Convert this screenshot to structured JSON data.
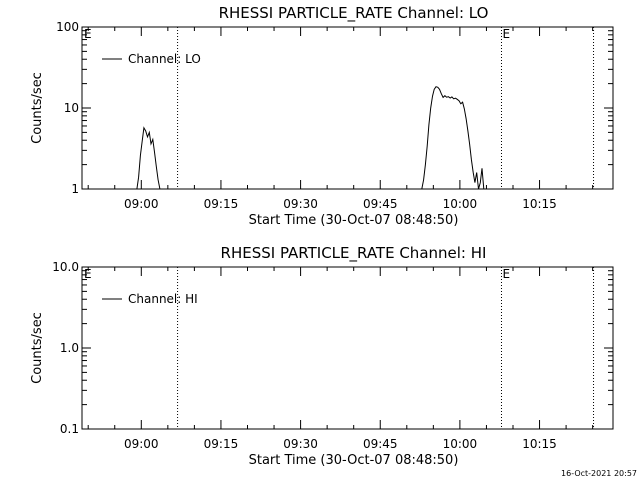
{
  "footer": {
    "timestamp": "16-Oct-2021 20:57"
  },
  "chart_data": [
    {
      "type": "line",
      "title": "RHESSI PARTICLE_RATE Channel: LO",
      "xlabel": "Start Time (30-Oct-07 08:48:50)",
      "ylabel": "Counts/sec",
      "y_scale": "log",
      "ylim": [
        1,
        100
      ],
      "xlim": [
        "08:48:50",
        "10:28:50"
      ],
      "x_tick_labels": [
        "09:00",
        "09:15",
        "09:30",
        "09:45",
        "10:00",
        "10:15"
      ],
      "y_tick_labels": [
        "1",
        "10",
        "100"
      ],
      "legend": {
        "position": "top-left",
        "label": "Channel: LO"
      },
      "markers": [
        {
          "time": "09:06:50",
          "label": ""
        },
        {
          "time": "10:07:50",
          "label": "E"
        },
        {
          "time": "10:25:10",
          "label": ""
        }
      ],
      "corner_label": "E",
      "series": [
        {
          "segments": [
            {
              "x": [
                "08:59:10",
                "08:59:30",
                "08:59:50",
                "09:00:10",
                "09:00:30",
                "09:00:50",
                "09:01:10",
                "09:01:30",
                "09:01:50",
                "09:02:10",
                "09:02:30",
                "09:02:50",
                "09:03:10",
                "09:03:30",
                "09:03:50"
              ],
              "y": [
                1.0,
                1.4,
                2.6,
                3.9,
                5.7,
                5.2,
                4.4,
                5.0,
                3.6,
                4.1,
                2.8,
                1.9,
                1.3,
                1.0,
                1.0
              ]
            },
            {
              "x": [
                "09:52:50",
                "09:53:10",
                "09:53:30",
                "09:53:50",
                "09:54:10",
                "09:54:30",
                "09:54:50",
                "09:55:10",
                "09:55:30",
                "09:55:50",
                "09:56:10",
                "09:56:30",
                "09:56:50",
                "09:57:10",
                "09:57:30",
                "09:57:50",
                "09:58:10",
                "09:58:30",
                "09:58:50",
                "09:59:10",
                "09:59:30",
                "09:59:50",
                "10:00:10",
                "10:00:30",
                "10:00:50",
                "10:01:10",
                "10:01:30",
                "10:01:50",
                "10:02:10",
                "10:02:30",
                "10:02:50",
                "10:03:10",
                "10:03:30",
                "10:03:50",
                "10:04:10",
                "10:04:30"
              ],
              "y": [
                1.0,
                1.3,
                2.0,
                3.4,
                6.2,
                10.0,
                14.0,
                17.0,
                18.3,
                18.0,
                17.0,
                15.0,
                13.5,
                14.2,
                13.6,
                13.8,
                13.3,
                13.7,
                13.0,
                13.2,
                12.8,
                12.3,
                11.3,
                11.8,
                9.8,
                7.4,
                5.2,
                3.6,
                2.3,
                1.6,
                1.2,
                1.6,
                1.0,
                1.2,
                1.8,
                1.0
              ]
            }
          ]
        }
      ]
    },
    {
      "type": "line",
      "title": "RHESSI PARTICLE_RATE Channel: HI",
      "xlabel": "Start Time (30-Oct-07 08:48:50)",
      "ylabel": "Counts/sec",
      "y_scale": "log",
      "ylim": [
        0.1,
        10
      ],
      "xlim": [
        "08:48:50",
        "10:28:50"
      ],
      "x_tick_labels": [
        "09:00",
        "09:15",
        "09:30",
        "09:45",
        "10:00",
        "10:15"
      ],
      "y_tick_labels": [
        "0.1",
        "1.0",
        "10.0"
      ],
      "legend": {
        "position": "top-left",
        "label": "Channel: HI"
      },
      "markers": [
        {
          "time": "09:06:50",
          "label": ""
        },
        {
          "time": "10:07:50",
          "label": "E"
        },
        {
          "time": "10:25:10",
          "label": ""
        }
      ],
      "corner_label": "E",
      "series": [
        {
          "segments": []
        }
      ]
    }
  ]
}
